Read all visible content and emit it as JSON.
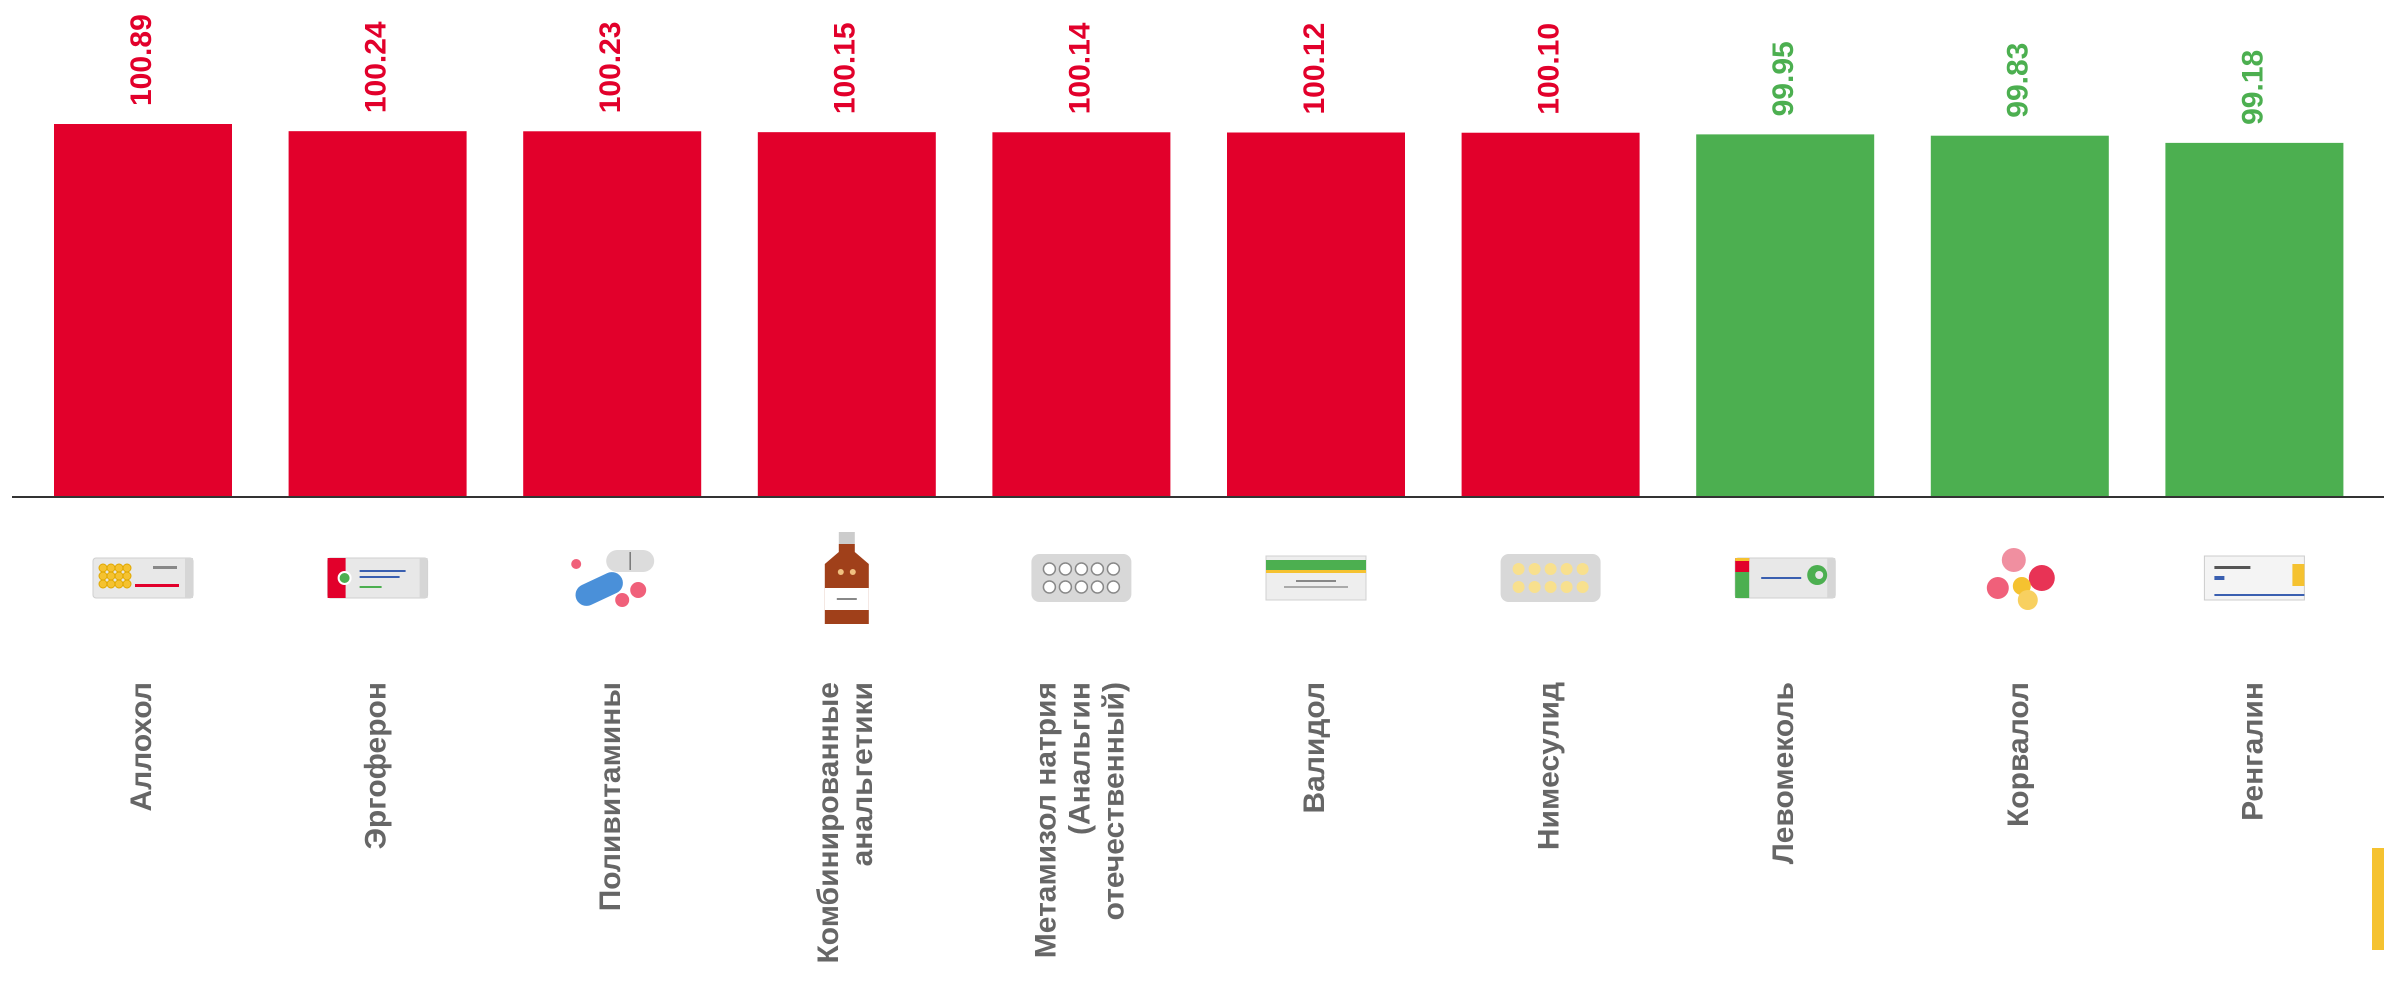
{
  "colors": {
    "above": "#e2002b",
    "below": "#4caf50",
    "axis": "#333333",
    "category_text": "#666666",
    "accent": "#f5c230"
  },
  "chart_data": {
    "type": "bar",
    "title": "",
    "xlabel": "",
    "ylabel": "",
    "grid": false,
    "baseline": 100,
    "categories": [
      [
        "Аллохол"
      ],
      [
        "Эргоферон"
      ],
      [
        "Поливитамины"
      ],
      [
        "Комбинированные",
        "анальгетики"
      ],
      [
        "Метамизол натрия",
        "(Анальгин",
        "отечественный)"
      ],
      [
        "Валидол"
      ],
      [
        "Нимесулид"
      ],
      [
        "Левомеколь"
      ],
      [
        "Корвалол"
      ],
      [
        "Ренгалин"
      ]
    ],
    "values": [
      100.89,
      100.24,
      100.23,
      100.15,
      100.14,
      100.12,
      100.1,
      99.95,
      99.83,
      99.18
    ],
    "value_labels": [
      "100.89",
      "100.24",
      "100.23",
      "100.15",
      "100.14",
      "100.12",
      "100.10",
      "99.95",
      "99.83",
      "99.18"
    ],
    "icons": [
      "tablet-box-icon",
      "red-box-icon",
      "pills-icon",
      "syrup-bottle-icon",
      "blister-icon",
      "green-box-icon",
      "yellow-blister-icon",
      "ointment-box-icon",
      "round-pills-icon",
      "white-box-icon"
    ]
  }
}
